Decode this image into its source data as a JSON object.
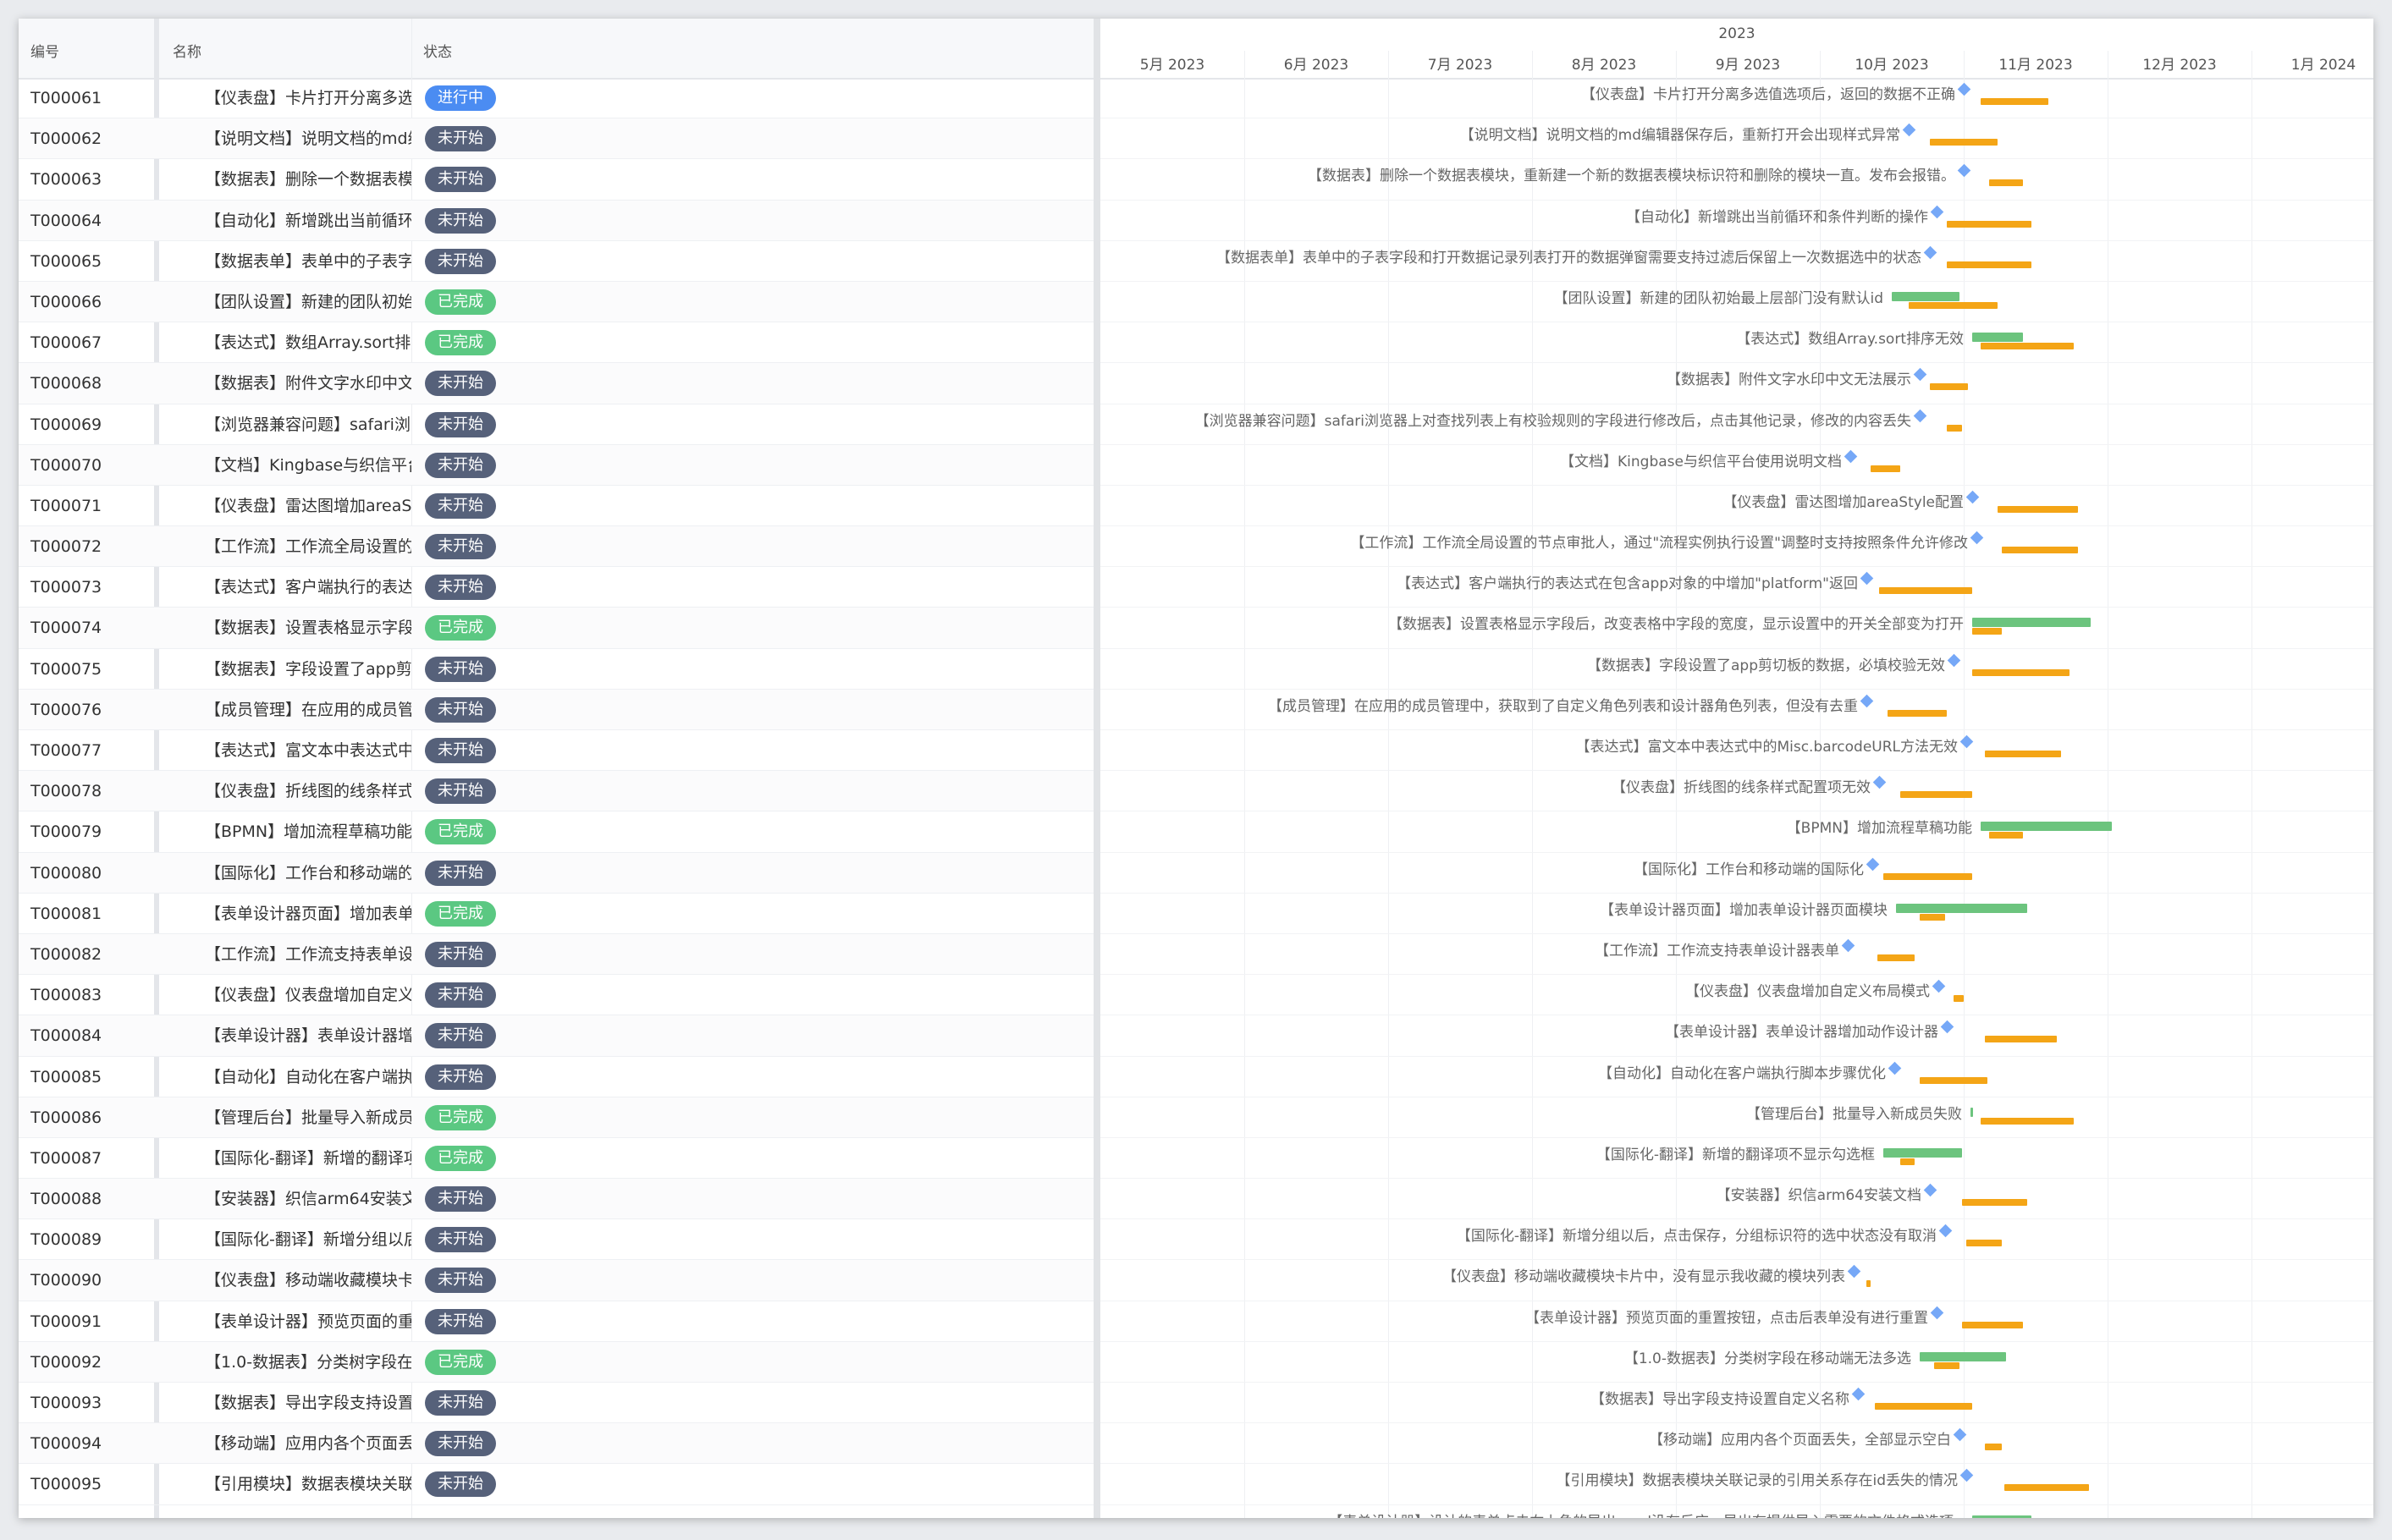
{
  "table": {
    "headers": {
      "id": "编号",
      "name": "名称",
      "status": "状态"
    }
  },
  "gantt": {
    "year": "2023",
    "months": [
      "5月 2023",
      "6月 2023",
      "7月 2023",
      "8月 2023",
      "9月 2023",
      "10月 2023",
      "11月 2023",
      "12月 2023",
      "1月 2024"
    ]
  },
  "colors": {
    "in_progress": "#4b8cf2",
    "not_started": "#56617a",
    "done": "#5bc882",
    "plan_bar": "#f4a516",
    "actual_bar": "#6cc47e",
    "milestone": "#76a8f7"
  },
  "tasks": [
    {
      "id": "T000061",
      "name": "【仪表盘】卡片打开分离多选",
      "status": "进行中",
      "st": "progress",
      "label": "【仪表盘】卡片打开分离多选值选项后，返回的数据不正确",
      "d": 2320,
      "p": [
        2340,
        2420
      ],
      "a": null
    },
    {
      "id": "T000062",
      "name": "【说明文档】说明文档的md编",
      "status": "未开始",
      "st": "todo",
      "label": "【说明文档】说明文档的md编辑器保存后，重新打开会出现样式异常",
      "d": 2255,
      "p": [
        2280,
        2360
      ],
      "a": null
    },
    {
      "id": "T000063",
      "name": "【数据表】删除一个数据表模",
      "status": "未开始",
      "st": "todo",
      "label": "【数据表】删除一个数据表模块，重新建一个新的数据表模块标识符和删除的模块一直。发布会报错。",
      "d": 2320,
      "p": [
        2350,
        2390
      ],
      "a": null
    },
    {
      "id": "T000064",
      "name": "【自动化】新增跳出当前循环",
      "status": "未开始",
      "st": "todo",
      "label": "【自动化】新增跳出当前循环和条件判断的操作",
      "d": 2288,
      "p": [
        2300,
        2400
      ],
      "a": null
    },
    {
      "id": "T000065",
      "name": "【数据表单】表单中的子表字",
      "status": "未开始",
      "st": "todo",
      "label": "【数据表单】表单中的子表字段和打开数据记录列表打开的数据弹窗需要支持过滤后保留上一次数据选中的状态",
      "d": 2280,
      "p": [
        2300,
        2400
      ],
      "a": null
    },
    {
      "id": "T000066",
      "name": "【团队设置】新建的团队初始",
      "status": "已完成",
      "st": "done",
      "label": "【团队设置】新建的团队初始最上层部门没有默认id",
      "d": null,
      "p": [
        2255,
        2360
      ],
      "a": [
        2235,
        2315
      ]
    },
    {
      "id": "T000067",
      "name": "【表达式】数组Array.sort排序",
      "status": "已完成",
      "st": "done",
      "label": "【表达式】数组Array.sort排序无效",
      "d": null,
      "p": [
        2340,
        2450
      ],
      "a": [
        2330,
        2390
      ]
    },
    {
      "id": "T000068",
      "name": "【数据表】附件文字水印中文",
      "status": "未开始",
      "st": "todo",
      "label": "【数据表】附件文字水印中文无法展示",
      "d": 2268,
      "p": [
        2280,
        2325
      ],
      "a": null
    },
    {
      "id": "T000069",
      "name": "【浏览器兼容问题】safari浏览",
      "status": "未开始",
      "st": "todo",
      "label": "【浏览器兼容问题】safari浏览器上对查找列表上有校验规则的字段进行修改后，点击其他记录，修改的内容丢失",
      "d": 2268,
      "p": [
        2300,
        2318
      ],
      "a": null
    },
    {
      "id": "T000070",
      "name": "【文档】Kingbase与织信平台",
      "status": "未开始",
      "st": "todo",
      "label": "【文档】Kingbase与织信平台使用说明文档",
      "d": 2186,
      "p": [
        2210,
        2245
      ],
      "a": null
    },
    {
      "id": "T000071",
      "name": "【仪表盘】雷达图增加areaSt",
      "status": "未开始",
      "st": "todo",
      "label": "【仪表盘】雷达图增加areaStyle配置",
      "d": 2330,
      "p": [
        2360,
        2455
      ],
      "a": null
    },
    {
      "id": "T000072",
      "name": "【工作流】工作流全局设置的",
      "status": "未开始",
      "st": "todo",
      "label": "【工作流】工作流全局设置的节点审批人，通过\"流程实例执行设置\"调整时支持按照条件允许修改",
      "d": 2335,
      "p": [
        2365,
        2455
      ],
      "a": null
    },
    {
      "id": "T000073",
      "name": "【表达式】客户端执行的表达",
      "status": "未开始",
      "st": "todo",
      "label": "【表达式】客户端执行的表达式在包含app对象的中增加\"platform\"返回",
      "d": 2205,
      "p": [
        2220,
        2330
      ],
      "a": null
    },
    {
      "id": "T000074",
      "name": "【数据表】设置表格显示字段",
      "status": "已完成",
      "st": "done",
      "label": "【数据表】设置表格显示字段后，改变表格中字段的宽度，显示设置中的开关全部变为打开",
      "d": null,
      "p": [
        2330,
        2365
      ],
      "a": [
        2330,
        2470
      ]
    },
    {
      "id": "T000075",
      "name": "【数据表】字段设置了app剪切",
      "status": "未开始",
      "st": "todo",
      "label": "【数据表】字段设置了app剪切板的数据，必填校验无效",
      "d": 2308,
      "p": [
        2330,
        2445
      ],
      "a": null
    },
    {
      "id": "T000076",
      "name": "【成员管理】在应用的成员管",
      "status": "未开始",
      "st": "todo",
      "label": "【成员管理】在应用的成员管理中，获取到了自定义角色列表和设计器角色列表，但没有去重",
      "d": 2205,
      "p": [
        2230,
        2300
      ],
      "a": null
    },
    {
      "id": "T000077",
      "name": "【表达式】富文本中表达式中",
      "status": "未开始",
      "st": "todo",
      "label": "【表达式】富文本中表达式中的Misc.barcodeURL方法无效",
      "d": 2323,
      "p": [
        2345,
        2435
      ],
      "a": null
    },
    {
      "id": "T000078",
      "name": "【仪表盘】折线图的线条样式",
      "status": "未开始",
      "st": "todo",
      "label": "【仪表盘】折线图的线条样式配置项无效",
      "d": 2220,
      "p": [
        2245,
        2330
      ],
      "a": null
    },
    {
      "id": "T000079",
      "name": "【BPMN】增加流程草稿功能",
      "status": "已完成",
      "st": "done",
      "label": "【BPMN】增加流程草稿功能",
      "d": null,
      "p": [
        2350,
        2390
      ],
      "a": [
        2340,
        2495
      ]
    },
    {
      "id": "T000080",
      "name": "【国际化】工作台和移动端的",
      "status": "未开始",
      "st": "todo",
      "label": "【国际化】工作台和移动端的国际化",
      "d": 2212,
      "p": [
        2225,
        2330
      ],
      "a": null
    },
    {
      "id": "T000081",
      "name": "【表单设计器页面】增加表单",
      "status": "已完成",
      "st": "done",
      "label": "【表单设计器页面】增加表单设计器页面模块",
      "d": null,
      "p": [
        2268,
        2298
      ],
      "a": [
        2240,
        2395
      ]
    },
    {
      "id": "T000082",
      "name": "【工作流】工作流支持表单设",
      "status": "未开始",
      "st": "todo",
      "label": "【工作流】工作流支持表单设计器表单",
      "d": 2183,
      "p": [
        2218,
        2262
      ],
      "a": null
    },
    {
      "id": "T000083",
      "name": "【仪表盘】仪表盘增加自定义",
      "status": "未开始",
      "st": "todo",
      "label": "【仪表盘】仪表盘增加自定义布局模式",
      "d": 2290,
      "p": [
        2308,
        2320
      ],
      "a": null
    },
    {
      "id": "T000084",
      "name": "【表单设计器】表单设计器增",
      "status": "未开始",
      "st": "todo",
      "label": "【表单设计器】表单设计器增加动作设计器",
      "d": 2300,
      "p": [
        2345,
        2430
      ],
      "a": null
    },
    {
      "id": "T000085",
      "name": "【自动化】自动化在客户端执",
      "status": "未开始",
      "st": "todo",
      "label": "【自动化】自动化在客户端执行脚本步骤优化",
      "d": 2238,
      "p": [
        2268,
        2348
      ],
      "a": null
    },
    {
      "id": "T000086",
      "name": "【管理后台】批量导入新成员",
      "status": "已完成",
      "st": "done",
      "label": "【管理后台】批量导入新成员失败",
      "d": null,
      "p": [
        2340,
        2450
      ],
      "a": [
        2328,
        2331
      ]
    },
    {
      "id": "T000087",
      "name": "【国际化-翻译】新增的翻译项",
      "status": "已完成",
      "st": "done",
      "label": "【国际化-翻译】新增的翻译项不显示勾选框",
      "d": null,
      "p": [
        2245,
        2262
      ],
      "a": [
        2225,
        2318
      ]
    },
    {
      "id": "T000088",
      "name": "【安装器】织信arm64安装文档",
      "status": "未开始",
      "st": "todo",
      "label": "【安装器】织信arm64安装文档",
      "d": 2280,
      "p": [
        2318,
        2395
      ],
      "a": null
    },
    {
      "id": "T000089",
      "name": "【国际化-翻译】新增分组以后",
      "status": "未开始",
      "st": "todo",
      "label": "【国际化-翻译】新增分组以后，点击保存，分组标识符的选中状态没有取消",
      "d": 2298,
      "p": [
        2323,
        2365
      ],
      "a": null
    },
    {
      "id": "T000090",
      "name": "【仪表盘】移动端收藏模块卡片",
      "status": "未开始",
      "st": "todo",
      "label": "【仪表盘】移动端收藏模块卡片中，没有显示我收藏的模块列表",
      "d": 2190,
      "p": [
        2205,
        2210
      ],
      "a": null
    },
    {
      "id": "T000091",
      "name": "【表单设计器】预览页面的重置",
      "status": "未开始",
      "st": "todo",
      "label": "【表单设计器】预览页面的重置按钮，点击后表单没有进行重置",
      "d": 2288,
      "p": [
        2318,
        2390
      ],
      "a": null
    },
    {
      "id": "T000092",
      "name": "【1.0-数据表】分类树字段在移",
      "status": "已完成",
      "st": "done",
      "label": "【1.0-数据表】分类树字段在移动端无法多选",
      "d": null,
      "p": [
        2285,
        2315
      ],
      "a": [
        2268,
        2370
      ]
    },
    {
      "id": "T000093",
      "name": "【数据表】导出字段支持设置自",
      "status": "未开始",
      "st": "todo",
      "label": "【数据表】导出字段支持设置自定义名称",
      "d": 2195,
      "p": [
        2215,
        2330
      ],
      "a": null
    },
    {
      "id": "T000094",
      "name": "【移动端】应用内各个页面丢失",
      "status": "未开始",
      "st": "todo",
      "label": "【移动端】应用内各个页面丢失，全部显示空白",
      "d": 2315,
      "p": [
        2345,
        2365
      ],
      "a": null
    },
    {
      "id": "T000095",
      "name": "【引用模块】数据表模块关联记",
      "status": "未开始",
      "st": "todo",
      "label": "【引用模块】数据表模块关联记录的引用关系存在id丢失的情况",
      "d": 2323,
      "p": [
        2368,
        2468
      ],
      "a": null
    }
  ],
  "partial_row": {
    "label": "【表单设计器】设计的表单点击右上角的导出word没有反应，导出有提供导入需要的文件格式选项"
  }
}
